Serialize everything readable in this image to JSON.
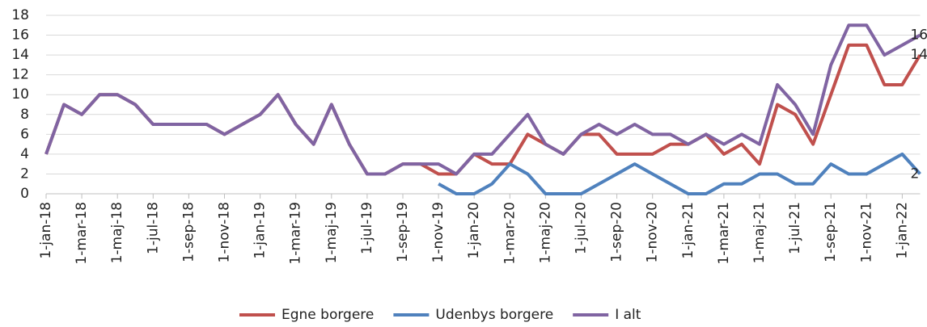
{
  "chart_data": {
    "type": "line",
    "categories": [
      "1-jan-18",
      null,
      "1-mar-18",
      null,
      "1-maj-18",
      null,
      "1-jul-18",
      null,
      "1-sep-18",
      null,
      "1-nov-18",
      null,
      "1-jan-19",
      null,
      "1-mar-19",
      null,
      "1-maj-19",
      null,
      "1-jul-19",
      null,
      "1-sep-19",
      null,
      "1-nov-19",
      null,
      "1-jan-20",
      null,
      "1-mar-20",
      null,
      "1-maj-20",
      null,
      "1-jul-20",
      null,
      "1-sep-20",
      null,
      "1-nov-20",
      null,
      "1-jan-21",
      null,
      "1-mar-21",
      null,
      "1-maj-21",
      null,
      "1-jul-21",
      null,
      "1-sep-21",
      null,
      "1-nov-21",
      null,
      "1-jan-22",
      null
    ],
    "series": [
      {
        "name": "Egne borgere",
        "color": "#c0504d",
        "values": [
          4,
          9,
          8,
          10,
          10,
          9,
          7,
          7,
          7,
          7,
          6,
          7,
          8,
          10,
          7,
          5,
          9,
          5,
          2,
          2,
          3,
          3,
          2,
          2,
          4,
          3,
          3,
          6,
          5,
          4,
          6,
          6,
          4,
          4,
          4,
          5,
          5,
          6,
          4,
          5,
          3,
          9,
          8,
          5,
          10,
          15,
          15,
          11,
          11,
          14
        ]
      },
      {
        "name": "Udenbys borgere",
        "color": "#4f81bd",
        "values": [
          null,
          null,
          null,
          null,
          null,
          null,
          null,
          null,
          null,
          null,
          null,
          null,
          null,
          null,
          null,
          null,
          null,
          null,
          null,
          null,
          null,
          null,
          1,
          0,
          0,
          1,
          3,
          2,
          0,
          0,
          0,
          1,
          2,
          3,
          2,
          1,
          0,
          0,
          1,
          1,
          2,
          2,
          1,
          1,
          3,
          2,
          2,
          3,
          4,
          2
        ]
      },
      {
        "name": "I alt",
        "color": "#8064a2",
        "values": [
          4,
          9,
          8,
          10,
          10,
          9,
          7,
          7,
          7,
          7,
          6,
          7,
          8,
          10,
          7,
          5,
          9,
          5,
          2,
          2,
          3,
          3,
          3,
          2,
          4,
          4,
          6,
          8,
          5,
          4,
          6,
          7,
          6,
          7,
          6,
          6,
          5,
          6,
          5,
          6,
          5,
          11,
          9,
          6,
          13,
          17,
          17,
          14,
          15,
          16
        ]
      }
    ],
    "ylim": [
      0,
      18
    ],
    "yticks": [
      0,
      2,
      4,
      6,
      8,
      10,
      12,
      14,
      16,
      18
    ],
    "grid": true,
    "end_labels": true,
    "legend": "bottom"
  }
}
